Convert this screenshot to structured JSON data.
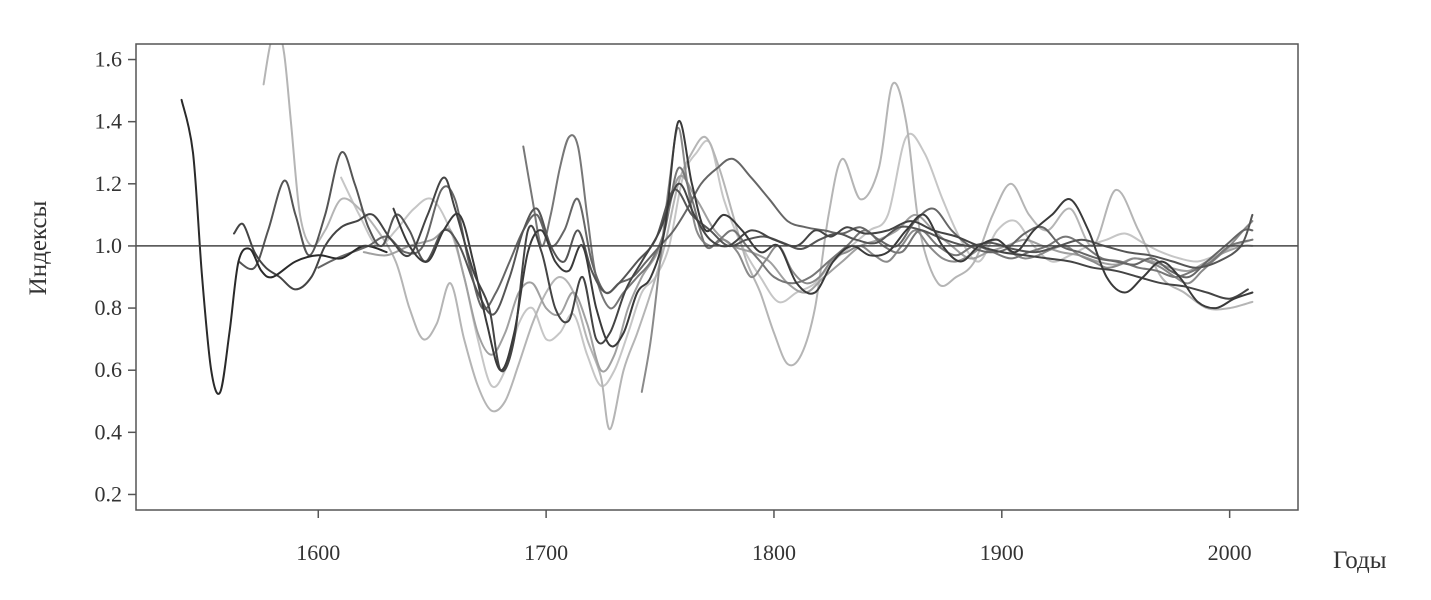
{
  "chart_data": {
    "type": "line",
    "title": "",
    "xlabel": "Годы",
    "ylabel": "Индексы",
    "xlim": [
      1520,
      2030
    ],
    "ylim": [
      0.15,
      1.65
    ],
    "xticks": [
      1600,
      1700,
      1800,
      1900,
      2000
    ],
    "yticks": [
      0.2,
      0.4,
      0.6,
      0.8,
      1.0,
      1.2,
      1.4,
      1.6
    ],
    "ytick_labels": [
      "0.2",
      "0.4",
      "0.6",
      "0.8",
      "1.0",
      "1.2",
      "1.4",
      "1.6"
    ],
    "reference_line": 1.0,
    "grid": false,
    "legend": "none",
    "series": [
      {
        "color": "#2a2a2a",
        "x": [
          1540,
          1545,
          1549,
          1553,
          1557,
          1561,
          1565,
          1570,
          1575,
          1580,
          1590,
          1600,
          1610,
          1620,
          1630
        ],
        "values": [
          1.47,
          1.3,
          0.9,
          0.6,
          0.53,
          0.72,
          0.95,
          0.99,
          0.92,
          0.9,
          0.95,
          0.97,
          0.96,
          1.0,
          0.98
        ]
      },
      {
        "color": "#444444",
        "x": [
          1563,
          1567,
          1572,
          1577,
          1583,
          1590,
          1597,
          1603,
          1610,
          1617,
          1624,
          1632,
          1640,
          1648,
          1655,
          1660,
          1668,
          1675,
          1680,
          1686,
          1692,
          1698,
          1704,
          1710,
          1716,
          1722,
          1728,
          1735,
          1742,
          1750,
          1758,
          1765,
          1772,
          1780,
          1790,
          1800,
          1810,
          1818,
          1825,
          1832,
          1840,
          1850,
          1860,
          1870,
          1880,
          1890,
          1900,
          1910,
          1920,
          1930,
          1940,
          1950,
          1960,
          1970,
          1980,
          1990,
          2000,
          2008
        ],
        "values": [
          1.04,
          1.07,
          0.98,
          0.93,
          0.9,
          0.86,
          0.9,
          1.0,
          1.06,
          1.08,
          1.1,
          1.02,
          0.97,
          1.1,
          1.22,
          1.12,
          0.92,
          0.8,
          0.6,
          0.7,
          1.05,
          0.98,
          0.8,
          0.76,
          0.9,
          0.7,
          0.72,
          0.86,
          0.95,
          1.05,
          1.2,
          1.1,
          1.02,
          1.0,
          1.05,
          1.02,
          1.0,
          1.05,
          1.03,
          1.06,
          1.04,
          1.05,
          1.08,
          1.05,
          1.03,
          1.0,
          0.98,
          0.97,
          0.96,
          0.95,
          0.93,
          0.92,
          0.9,
          0.88,
          0.87,
          0.85,
          0.83,
          0.86
        ]
      },
      {
        "color": "#555555",
        "x": [
          1565,
          1572,
          1578,
          1585,
          1590,
          1596,
          1603,
          1610,
          1616,
          1622,
          1628,
          1634,
          1640,
          1647,
          1655,
          1662,
          1670,
          1677,
          1684,
          1690,
          1696,
          1702,
          1708,
          1714,
          1720,
          1726,
          1732,
          1740,
          1748,
          1756,
          1764,
          1772,
          1780,
          1788,
          1796,
          1804,
          1812,
          1820,
          1828,
          1836,
          1845,
          1855,
          1865,
          1875,
          1885,
          1895,
          1905,
          1915,
          1925,
          1935,
          1945,
          1955,
          1965,
          1975,
          1985,
          1995,
          2005,
          2010
        ],
        "values": [
          0.95,
          0.93,
          1.05,
          1.21,
          1.1,
          0.97,
          1.1,
          1.3,
          1.2,
          1.06,
          1.0,
          1.1,
          1.05,
          0.95,
          1.05,
          1.0,
          0.85,
          0.78,
          0.9,
          1.05,
          1.12,
          1.0,
          0.95,
          1.05,
          0.92,
          0.85,
          0.88,
          0.95,
          1.02,
          1.18,
          1.1,
          1.05,
          1.0,
          1.02,
          1.03,
          1.01,
          0.99,
          1.02,
          1.04,
          1.02,
          1.01,
          1.06,
          1.05,
          1.02,
          1.0,
          1.01,
          0.99,
          0.98,
          1.0,
          1.02,
          1.0,
          0.98,
          0.97,
          0.95,
          0.93,
          0.95,
          1.0,
          1.1
        ]
      },
      {
        "color": "#666666",
        "x": [
          1600,
          1608,
          1615,
          1622,
          1630,
          1638,
          1646,
          1654,
          1660,
          1666,
          1672,
          1678,
          1684,
          1690,
          1696,
          1702,
          1708,
          1714,
          1720,
          1726,
          1732,
          1738,
          1744,
          1750,
          1756,
          1762,
          1768,
          1775,
          1782,
          1790,
          1798,
          1806,
          1814,
          1822,
          1830,
          1838,
          1846,
          1854,
          1862,
          1870,
          1878,
          1886,
          1894,
          1902,
          1910,
          1918,
          1926,
          1934,
          1942,
          1950,
          1958,
          1966,
          1974,
          1982,
          1990,
          1998,
          2006,
          2010
        ],
        "values": [
          0.93,
          0.96,
          0.98,
          1.0,
          1.03,
          0.98,
          1.0,
          1.18,
          1.15,
          0.95,
          0.8,
          0.85,
          0.95,
          1.05,
          1.1,
          1.0,
          1.05,
          1.15,
          0.95,
          0.85,
          0.88,
          0.9,
          0.95,
          1.0,
          1.05,
          1.12,
          1.2,
          1.25,
          1.28,
          1.22,
          1.15,
          1.08,
          1.06,
          1.05,
          1.04,
          1.06,
          1.02,
          1.0,
          1.08,
          1.12,
          1.05,
          1.0,
          0.98,
          0.99,
          1.04,
          1.06,
          1.0,
          0.98,
          0.96,
          0.95,
          0.94,
          0.96,
          0.92,
          0.9,
          0.95,
          1.0,
          1.05,
          1.05
        ]
      },
      {
        "color": "#3a3a3a",
        "x": [
          1633,
          1640,
          1648,
          1655,
          1662,
          1668,
          1674,
          1680,
          1686,
          1692,
          1698,
          1704,
          1710,
          1716,
          1722,
          1728,
          1734,
          1740,
          1746,
          1752,
          1758,
          1764,
          1770,
          1778,
          1786,
          1794,
          1802,
          1810,
          1818,
          1826,
          1834,
          1842,
          1850,
          1858,
          1866,
          1874,
          1882,
          1890,
          1898,
          1906,
          1914,
          1922,
          1930,
          1938,
          1946,
          1954,
          1962,
          1970,
          1978,
          1986,
          1994,
          2002,
          2010
        ],
        "values": [
          1.12,
          1.0,
          0.95,
          1.05,
          1.1,
          0.95,
          0.75,
          0.6,
          0.72,
          0.98,
          1.05,
          0.95,
          0.92,
          1.0,
          0.8,
          0.68,
          0.72,
          0.85,
          0.9,
          1.05,
          1.4,
          1.2,
          1.05,
          1.1,
          1.05,
          0.98,
          1.0,
          0.88,
          0.85,
          0.95,
          1.0,
          0.97,
          0.98,
          1.05,
          1.1,
          1.0,
          0.95,
          1.0,
          1.02,
          0.98,
          1.05,
          1.1,
          1.15,
          1.05,
          0.9,
          0.85,
          0.9,
          0.95,
          0.9,
          0.82,
          0.8,
          0.83,
          0.85
        ]
      },
      {
        "color": "#777777",
        "x": [
          1690,
          1694,
          1698,
          1702,
          1706,
          1710,
          1714,
          1718,
          1722,
          1728,
          1734,
          1740,
          1746,
          1752,
          1758,
          1764,
          1770,
          1776,
          1782,
          1788,
          1794,
          1800,
          1808,
          1816,
          1824,
          1832,
          1840,
          1848,
          1856,
          1864,
          1872,
          1880,
          1888,
          1896,
          1904,
          1912,
          1920,
          1928,
          1936,
          1944,
          1952,
          1960,
          1968,
          1976,
          1984,
          1992,
          2000,
          2010
        ],
        "values": [
          1.32,
          1.15,
          1.0,
          1.1,
          1.25,
          1.35,
          1.32,
          1.1,
          0.9,
          0.8,
          0.85,
          0.9,
          0.95,
          1.05,
          1.25,
          1.15,
          1.0,
          1.02,
          1.05,
          1.0,
          0.95,
          0.9,
          0.88,
          0.9,
          0.95,
          1.0,
          1.05,
          1.0,
          0.98,
          1.05,
          1.0,
          0.97,
          1.0,
          0.98,
          0.96,
          0.98,
          1.0,
          1.03,
          1.0,
          0.96,
          0.95,
          0.93,
          0.92,
          0.9,
          0.92,
          0.95,
          1.0,
          1.02
        ]
      },
      {
        "color": "#8a8a8a",
        "x": [
          1742,
          1746,
          1750,
          1754,
          1758,
          1762,
          1766,
          1772,
          1778,
          1784,
          1790,
          1796,
          1802,
          1808,
          1814,
          1820,
          1826,
          1832,
          1838,
          1844,
          1850,
          1856,
          1862,
          1868,
          1874,
          1880,
          1886,
          1892,
          1898,
          1904,
          1910,
          1916,
          1922,
          1928,
          1934,
          1940,
          1946,
          1952,
          1958,
          1964,
          1970,
          1976,
          1982,
          1988,
          1994,
          2000,
          2006,
          2010
        ],
        "values": [
          0.53,
          0.7,
          0.95,
          1.2,
          1.38,
          1.2,
          1.05,
          1.0,
          1.02,
          0.98,
          0.9,
          0.95,
          1.0,
          0.92,
          0.88,
          0.9,
          0.96,
          0.98,
          1.0,
          0.97,
          0.95,
          1.0,
          1.05,
          1.0,
          0.96,
          0.95,
          0.97,
          1.0,
          1.02,
          0.98,
          0.96,
          0.97,
          0.99,
          1.0,
          0.97,
          0.95,
          0.93,
          0.94,
          0.96,
          0.95,
          0.93,
          0.9,
          0.88,
          0.92,
          0.96,
          1.0,
          1.05,
          1.08
        ]
      },
      {
        "color": "#b5b5b5",
        "x": [
          1576,
          1579,
          1582,
          1585,
          1588,
          1592,
          1597,
          1603,
          1610,
          1618,
          1626,
          1634,
          1640,
          1646,
          1652,
          1658,
          1664,
          1670,
          1676,
          1682,
          1688,
          1694,
          1700,
          1706,
          1712,
          1718,
          1724,
          1728,
          1734,
          1740,
          1746,
          1752,
          1758,
          1764,
          1770,
          1776,
          1782,
          1788,
          1794,
          1800,
          1806,
          1812,
          1818,
          1824,
          1830,
          1838,
          1846,
          1852,
          1858,
          1864,
          1872,
          1880,
          1888,
          1896,
          1904,
          1912,
          1920,
          1930,
          1940,
          1950,
          1960,
          1970,
          1980,
          1990,
          2000,
          2010
        ],
        "values": [
          1.52,
          1.65,
          1.7,
          1.62,
          1.4,
          1.1,
          1.0,
          1.05,
          1.15,
          1.12,
          1.05,
          0.95,
          0.8,
          0.7,
          0.75,
          0.88,
          0.7,
          0.55,
          0.47,
          0.5,
          0.62,
          0.75,
          0.85,
          0.9,
          0.85,
          0.7,
          0.58,
          0.41,
          0.6,
          0.72,
          0.85,
          1.0,
          1.2,
          1.3,
          1.35,
          1.25,
          1.1,
          0.95,
          0.85,
          0.72,
          0.62,
          0.65,
          0.8,
          1.1,
          1.28,
          1.15,
          1.25,
          1.52,
          1.4,
          1.05,
          0.88,
          0.9,
          0.95,
          1.1,
          1.2,
          1.1,
          1.05,
          1.12,
          1.0,
          1.18,
          1.05,
          0.9,
          0.85,
          0.8,
          0.8,
          0.82
        ]
      },
      {
        "color": "#c6c6c6",
        "x": [
          1610,
          1618,
          1626,
          1634,
          1642,
          1650,
          1658,
          1664,
          1670,
          1676,
          1682,
          1688,
          1694,
          1700,
          1706,
          1712,
          1718,
          1724,
          1730,
          1736,
          1742,
          1748,
          1754,
          1760,
          1766,
          1772,
          1778,
          1786,
          1794,
          1802,
          1810,
          1818,
          1826,
          1834,
          1842,
          1850,
          1858,
          1866,
          1874,
          1882,
          1890,
          1898,
          1906,
          1914,
          1922,
          1930,
          1938,
          1946,
          1954,
          1962,
          1970,
          1978,
          1986,
          1994,
          2002,
          2010
        ],
        "values": [
          1.22,
          1.1,
          1.0,
          1.05,
          1.12,
          1.15,
          1.05,
          0.9,
          0.7,
          0.55,
          0.6,
          0.75,
          0.8,
          0.7,
          0.72,
          0.78,
          0.65,
          0.55,
          0.6,
          0.72,
          0.85,
          0.9,
          1.0,
          1.22,
          1.3,
          1.33,
          1.15,
          1.0,
          0.9,
          0.82,
          0.85,
          0.88,
          0.95,
          1.0,
          1.05,
          1.1,
          1.35,
          1.3,
          1.15,
          1.02,
          0.95,
          1.05,
          1.08,
          1.0,
          0.95,
          0.97,
          1.0,
          1.02,
          1.04,
          1.01,
          0.98,
          0.96,
          0.95,
          0.97,
          1.0,
          1.02
        ]
      },
      {
        "color": "#a0a0a0",
        "x": [
          1620,
          1630,
          1640,
          1650,
          1658,
          1664,
          1670,
          1676,
          1682,
          1688,
          1694,
          1700,
          1706,
          1712,
          1718,
          1724,
          1730,
          1736,
          1742,
          1750,
          1758,
          1766,
          1774,
          1782,
          1790,
          1798,
          1806,
          1814,
          1822,
          1830,
          1838,
          1846,
          1854,
          1862,
          1870,
          1878,
          1886,
          1894,
          1902,
          1910,
          1918,
          1926,
          1934,
          1942,
          1950,
          1958,
          1966,
          1974,
          1982,
          1990,
          1998,
          2006,
          2010
        ],
        "values": [
          0.98,
          0.97,
          1.0,
          1.02,
          1.05,
          0.9,
          0.72,
          0.65,
          0.72,
          0.85,
          0.88,
          0.8,
          0.78,
          0.85,
          0.75,
          0.6,
          0.65,
          0.8,
          0.9,
          1.0,
          1.22,
          1.15,
          1.05,
          1.0,
          0.98,
          0.95,
          0.88,
          0.85,
          0.9,
          0.95,
          1.0,
          1.02,
          1.05,
          1.1,
          1.05,
          1.0,
          0.96,
          0.98,
          1.0,
          1.02,
          1.0,
          0.98,
          0.97,
          0.95,
          0.94,
          0.96,
          0.95,
          0.93,
          0.92,
          0.95,
          0.98,
          1.0,
          1.0
        ]
      }
    ]
  }
}
